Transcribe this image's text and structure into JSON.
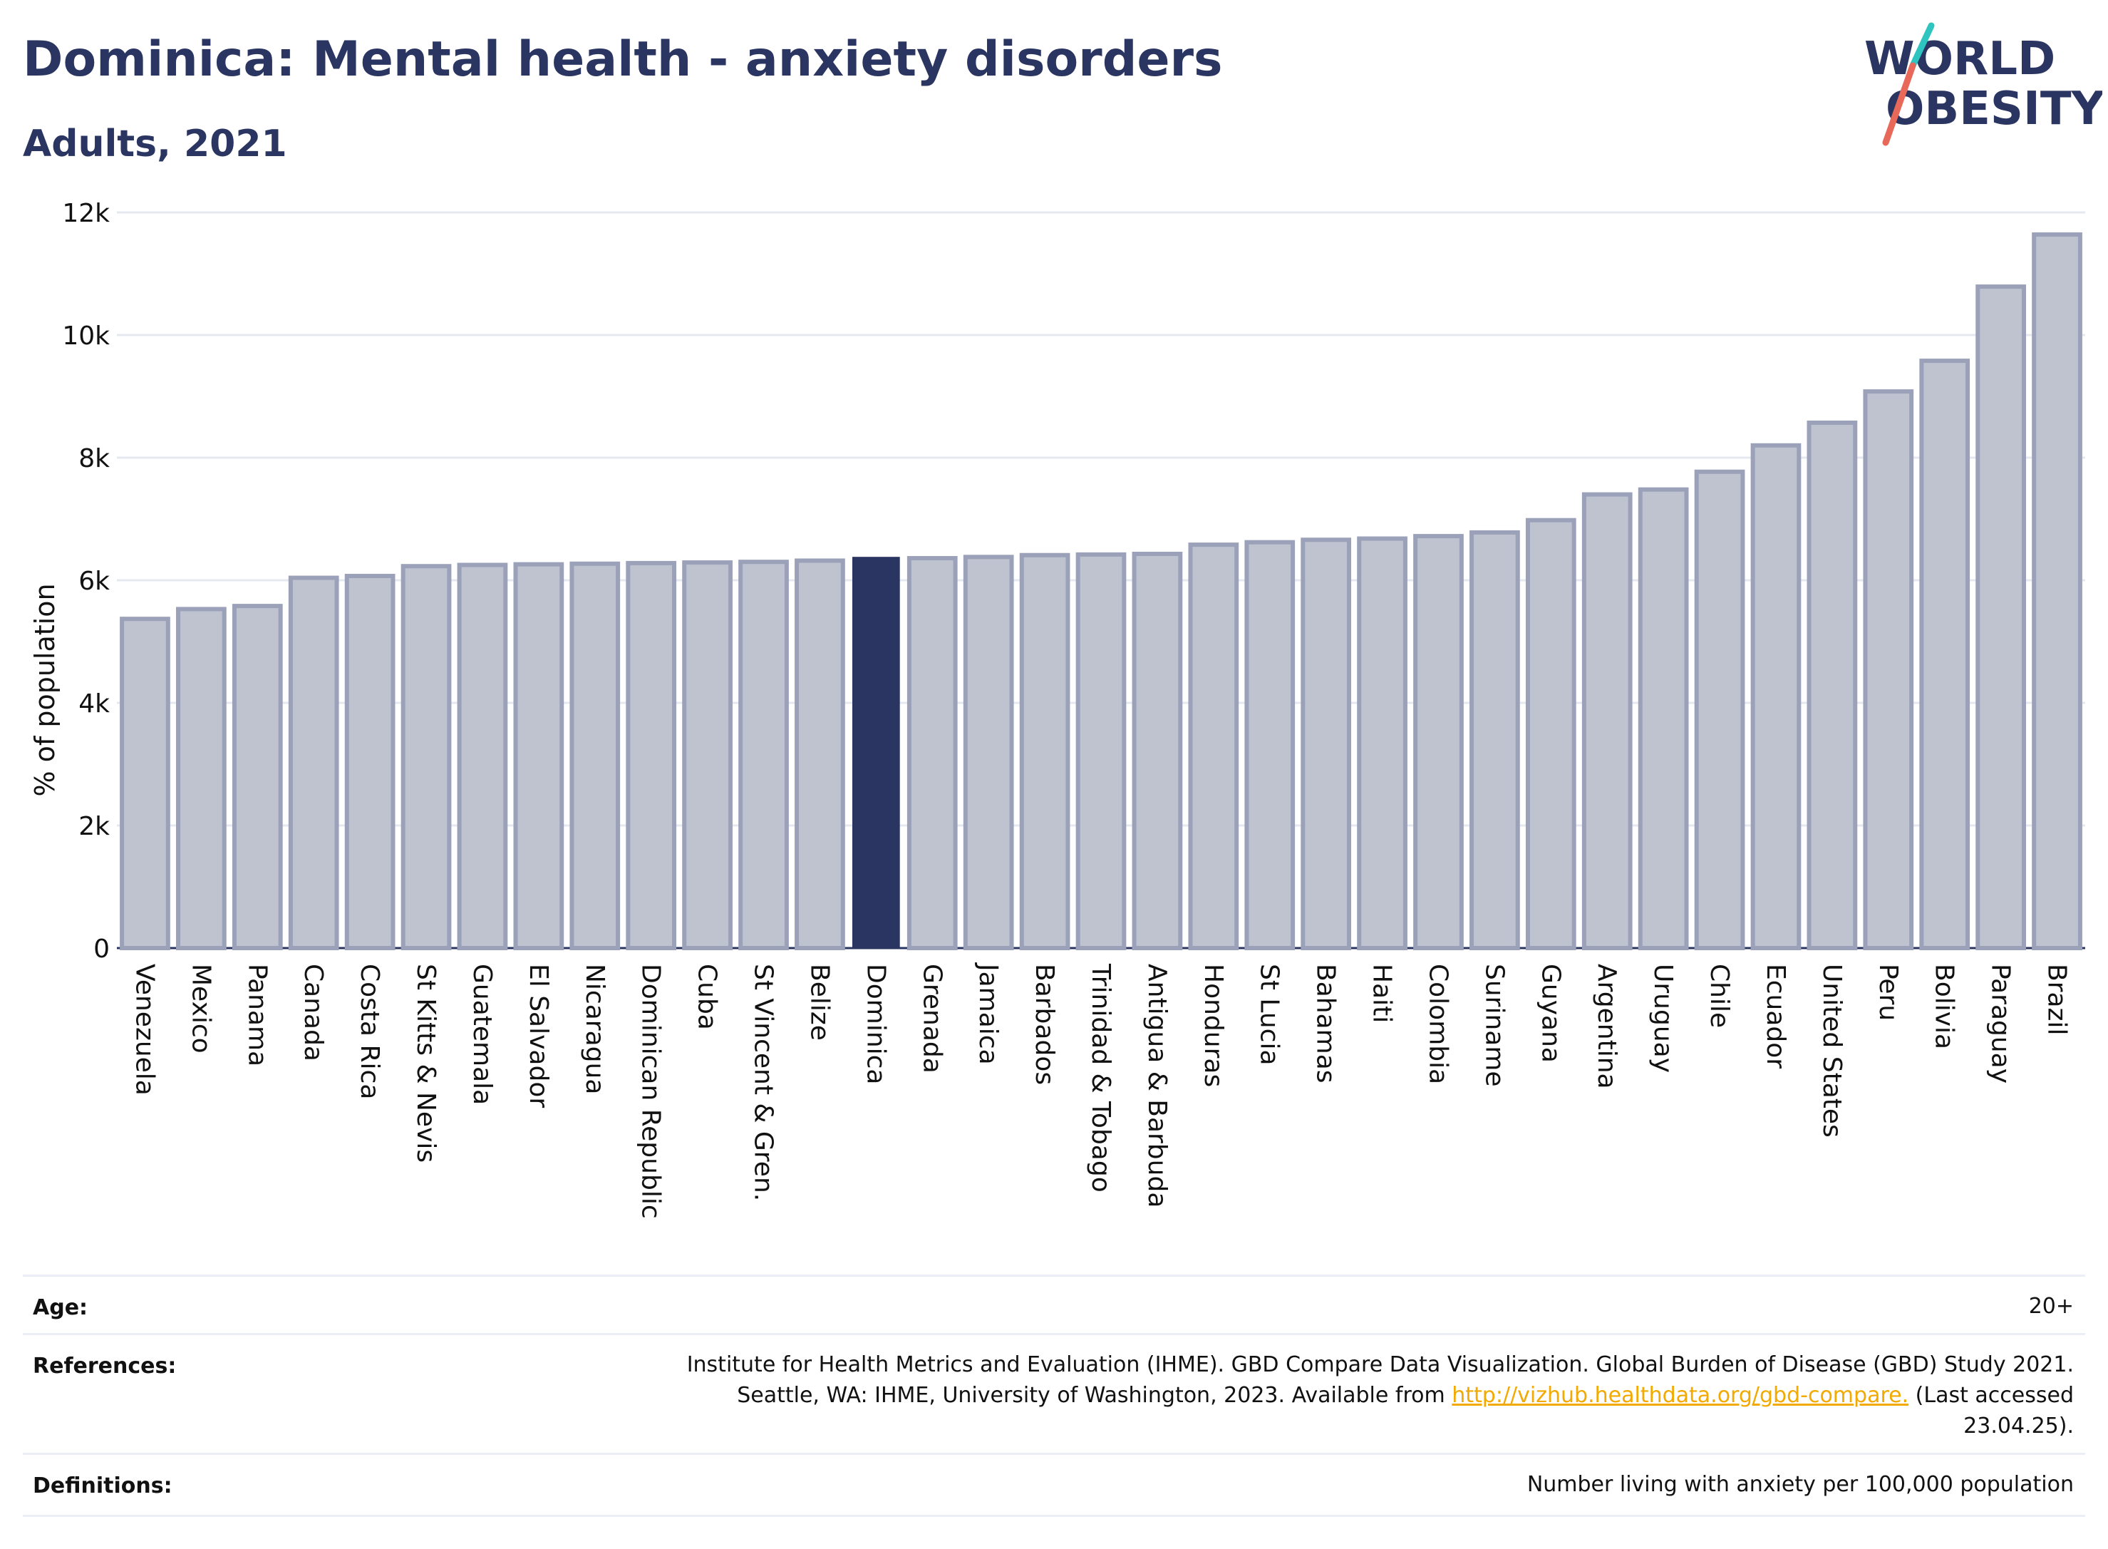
{
  "header": {
    "title": "Dominica: Mental health - anxiety disorders",
    "subtitle": "Adults, 2021",
    "logo_line1": "WORLD",
    "logo_line2": "OBESITY"
  },
  "colors": {
    "highlight": "#2a3561",
    "bar_fill": "#bfc3d0",
    "bar_stroke": "#9aa1b8",
    "text": "#2a3561",
    "link": "#f2a900",
    "logo_slash_teal": "#2ec4c0",
    "logo_slash_red": "#e8685a"
  },
  "chart_data": {
    "type": "bar",
    "title": "Dominica: Mental health - anxiety disorders",
    "subtitle": "Adults, 2021",
    "ylabel": "% of population",
    "xlabel": "",
    "ylim": [
      0,
      12000
    ],
    "yticks": [
      {
        "value": 0,
        "label": "0"
      },
      {
        "value": 2000,
        "label": "2k"
      },
      {
        "value": 4000,
        "label": "4k"
      },
      {
        "value": 6000,
        "label": "6k"
      },
      {
        "value": 8000,
        "label": "8k"
      },
      {
        "value": 10000,
        "label": "10k"
      },
      {
        "value": 12000,
        "label": "12k"
      }
    ],
    "grid": true,
    "highlight": "Dominica",
    "categories": [
      "Venezuela",
      "Mexico",
      "Panama",
      "Canada",
      "Costa Rica",
      "St Kitts & Nevis",
      "Guatemala",
      "El Salvador",
      "Nicaragua",
      "Dominican Republic",
      "Cuba",
      "St Vincent & Gren.",
      "Belize",
      "Dominica",
      "Grenada",
      "Jamaica",
      "Barbados",
      "Trinidad & Tobago",
      "Antigua & Barbuda",
      "Honduras",
      "St Lucia",
      "Bahamas",
      "Haiti",
      "Colombia",
      "Suriname",
      "Guyana",
      "Argentina",
      "Uruguay",
      "Chile",
      "Ecuador",
      "United States",
      "Peru",
      "Bolivia",
      "Paraguay",
      "Brazil"
    ],
    "values": [
      5370,
      5530,
      5580,
      6040,
      6070,
      6230,
      6250,
      6260,
      6270,
      6280,
      6290,
      6300,
      6320,
      6370,
      6360,
      6380,
      6410,
      6420,
      6430,
      6580,
      6620,
      6660,
      6680,
      6720,
      6780,
      6980,
      7400,
      7480,
      7770,
      8200,
      8570,
      9080,
      9580,
      10790,
      11640
    ]
  },
  "info": {
    "age_label": "Age:",
    "age_value": "20+",
    "references_label": "References:",
    "references_line1": "Institute for Health Metrics and Evaluation (IHME). GBD Compare Data Visualization. Global Burden of Disease (GBD) Study 2021.",
    "references_line2_pre": "Seattle, WA: IHME, University of Washington, 2023. Available from",
    "references_link": "http://vizhub.healthdata.org/gbd-compare.",
    "references_line2_post": "(Last accessed",
    "references_line3": "23.04.25).",
    "definitions_label": "Definitions:",
    "definitions_value": "Number living with anxiety per 100,000 population"
  }
}
